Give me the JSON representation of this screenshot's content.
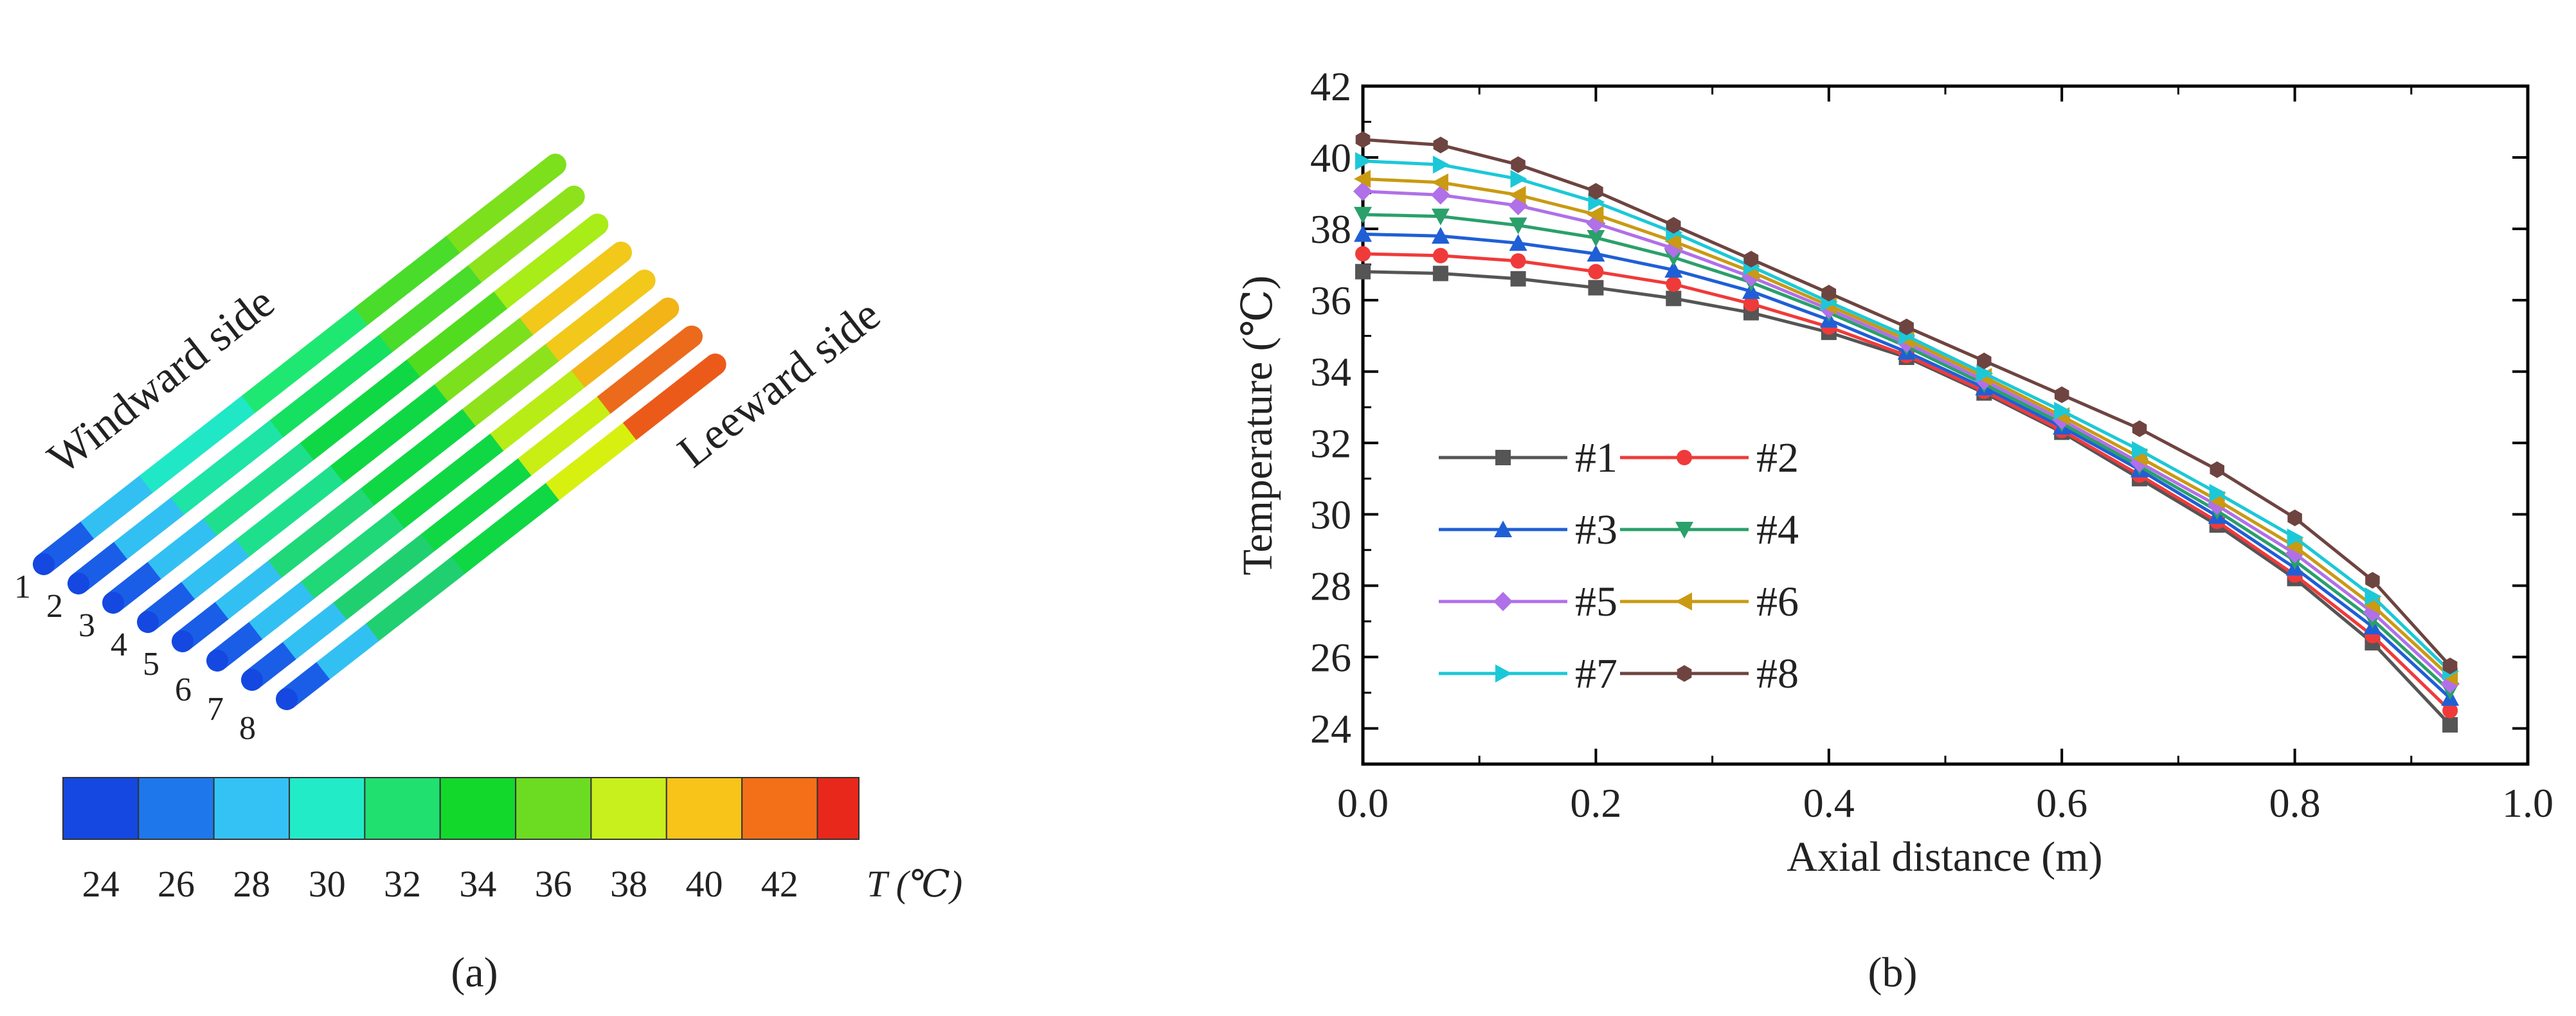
{
  "panel_a": {
    "caption": "(a)",
    "tube_numbers": [
      "1",
      "2",
      "3",
      "4",
      "5",
      "6",
      "7",
      "8"
    ],
    "label_windward": "Windward side",
    "label_leeward": "Leeward side",
    "tube_segment_colors": [
      [
        "#1a5ee8",
        "#32c0f2",
        "#20e8c6",
        "#1fe872",
        "#49dc2a",
        "#7ce01c"
      ],
      [
        "#1a5ee8",
        "#32c0f2",
        "#1ee4a6",
        "#16e060",
        "#49dc2a",
        "#8ee21c"
      ],
      [
        "#1a5ee8",
        "#32c0f2",
        "#1ee08c",
        "#10d844",
        "#52dc20",
        "#a8ec18"
      ],
      [
        "#1a5ee8",
        "#32c0f2",
        "#1ee08c",
        "#10d844",
        "#7ce01c",
        "#f2c81a"
      ],
      [
        "#1a5ee8",
        "#32c0f2",
        "#20d878",
        "#10d844",
        "#8ee21c",
        "#f2c81a"
      ],
      [
        "#1a5ee8",
        "#32c0f2",
        "#20d878",
        "#10d844",
        "#b8ec16",
        "#f2b416"
      ],
      [
        "#1a5ee8",
        "#32c0f2",
        "#20d070",
        "#10d844",
        "#c8ee14",
        "#ec6a1c"
      ],
      [
        "#1a5ee8",
        "#32c0f2",
        "#20d070",
        "#10d844",
        "#d8f010",
        "#ec5a1a"
      ]
    ],
    "colorbar": {
      "colors": [
        "#1448e0",
        "#1e78ec",
        "#34c2f4",
        "#22ecc8",
        "#20e070",
        "#12d82c",
        "#6cdc22",
        "#c8f01c",
        "#f8c41a",
        "#f47018",
        "#e8281a"
      ],
      "tick_labels": [
        "24",
        "26",
        "28",
        "30",
        "32",
        "34",
        "36",
        "38",
        "40",
        "42"
      ],
      "unit_label": "T (℃)"
    }
  },
  "panel_b": {
    "caption": "(b)",
    "legend_labels": [
      "#1",
      "#2",
      "#3",
      "#4",
      "#5",
      "#6",
      "#7",
      "#8"
    ]
  },
  "chart_data": {
    "type": "line",
    "title": "",
    "xlabel": "Axial distance (m)",
    "ylabel": "Temperature (℃)",
    "xlim": [
      0.0,
      1.0
    ],
    "ylim": [
      23,
      42
    ],
    "xticks": [
      0.0,
      0.2,
      0.4,
      0.6,
      0.8,
      1.0
    ],
    "xtick_labels": [
      "0.0",
      "0.2",
      "0.4",
      "0.6",
      "0.8",
      "1.0"
    ],
    "yticks": [
      24,
      26,
      28,
      30,
      32,
      34,
      36,
      38,
      40,
      42
    ],
    "ytick_labels": [
      "24",
      "26",
      "28",
      "30",
      "32",
      "34",
      "36",
      "38",
      "40",
      "42"
    ],
    "x": [
      0.0,
      0.0667,
      0.1333,
      0.2,
      0.2667,
      0.3333,
      0.4,
      0.4667,
      0.5333,
      0.6,
      0.6667,
      0.7333,
      0.8,
      0.8667,
      0.9333
    ],
    "series": [
      {
        "name": "#1",
        "color": "#555555",
        "marker": "square",
        "values": [
          36.8,
          36.75,
          36.6,
          36.35,
          36.05,
          35.65,
          35.1,
          34.4,
          33.4,
          32.3,
          31.0,
          29.7,
          28.2,
          26.4,
          24.1
        ]
      },
      {
        "name": "#2",
        "color": "#f03a3a",
        "marker": "circle",
        "values": [
          37.3,
          37.25,
          37.1,
          36.8,
          36.45,
          35.9,
          35.25,
          34.45,
          33.45,
          32.35,
          31.1,
          29.8,
          28.3,
          26.6,
          24.5
        ]
      },
      {
        "name": "#3",
        "color": "#1f5fd6",
        "marker": "triangle-up",
        "values": [
          37.85,
          37.8,
          37.6,
          37.3,
          36.85,
          36.25,
          35.45,
          34.55,
          33.55,
          32.45,
          31.25,
          29.95,
          28.5,
          26.85,
          24.85
        ]
      },
      {
        "name": "#4",
        "color": "#2aa06a",
        "marker": "triangle-down",
        "values": [
          38.4,
          38.35,
          38.1,
          37.75,
          37.2,
          36.5,
          35.65,
          34.7,
          33.65,
          32.55,
          31.35,
          30.1,
          28.7,
          27.05,
          25.05
        ]
      },
      {
        "name": "#5",
        "color": "#b070e8",
        "marker": "diamond",
        "values": [
          39.05,
          38.95,
          38.65,
          38.15,
          37.45,
          36.65,
          35.75,
          34.8,
          33.75,
          32.65,
          31.45,
          30.25,
          28.9,
          27.25,
          25.25
        ]
      },
      {
        "name": "#6",
        "color": "#c99a12",
        "marker": "triangle-left",
        "values": [
          39.4,
          39.3,
          38.95,
          38.4,
          37.65,
          36.8,
          35.85,
          34.9,
          33.85,
          32.75,
          31.6,
          30.4,
          29.1,
          27.45,
          25.45
        ]
      },
      {
        "name": "#7",
        "color": "#1cc8d8",
        "marker": "triangle-right",
        "values": [
          39.9,
          39.8,
          39.4,
          38.75,
          37.9,
          36.95,
          35.95,
          35.0,
          33.95,
          32.9,
          31.8,
          30.6,
          29.35,
          27.7,
          25.6
        ]
      },
      {
        "name": "#8",
        "color": "#6e4440",
        "marker": "hexagon",
        "values": [
          40.5,
          40.35,
          39.8,
          39.05,
          38.1,
          37.15,
          36.2,
          35.25,
          34.3,
          33.35,
          32.4,
          31.25,
          29.9,
          28.15,
          25.75
        ]
      }
    ]
  }
}
